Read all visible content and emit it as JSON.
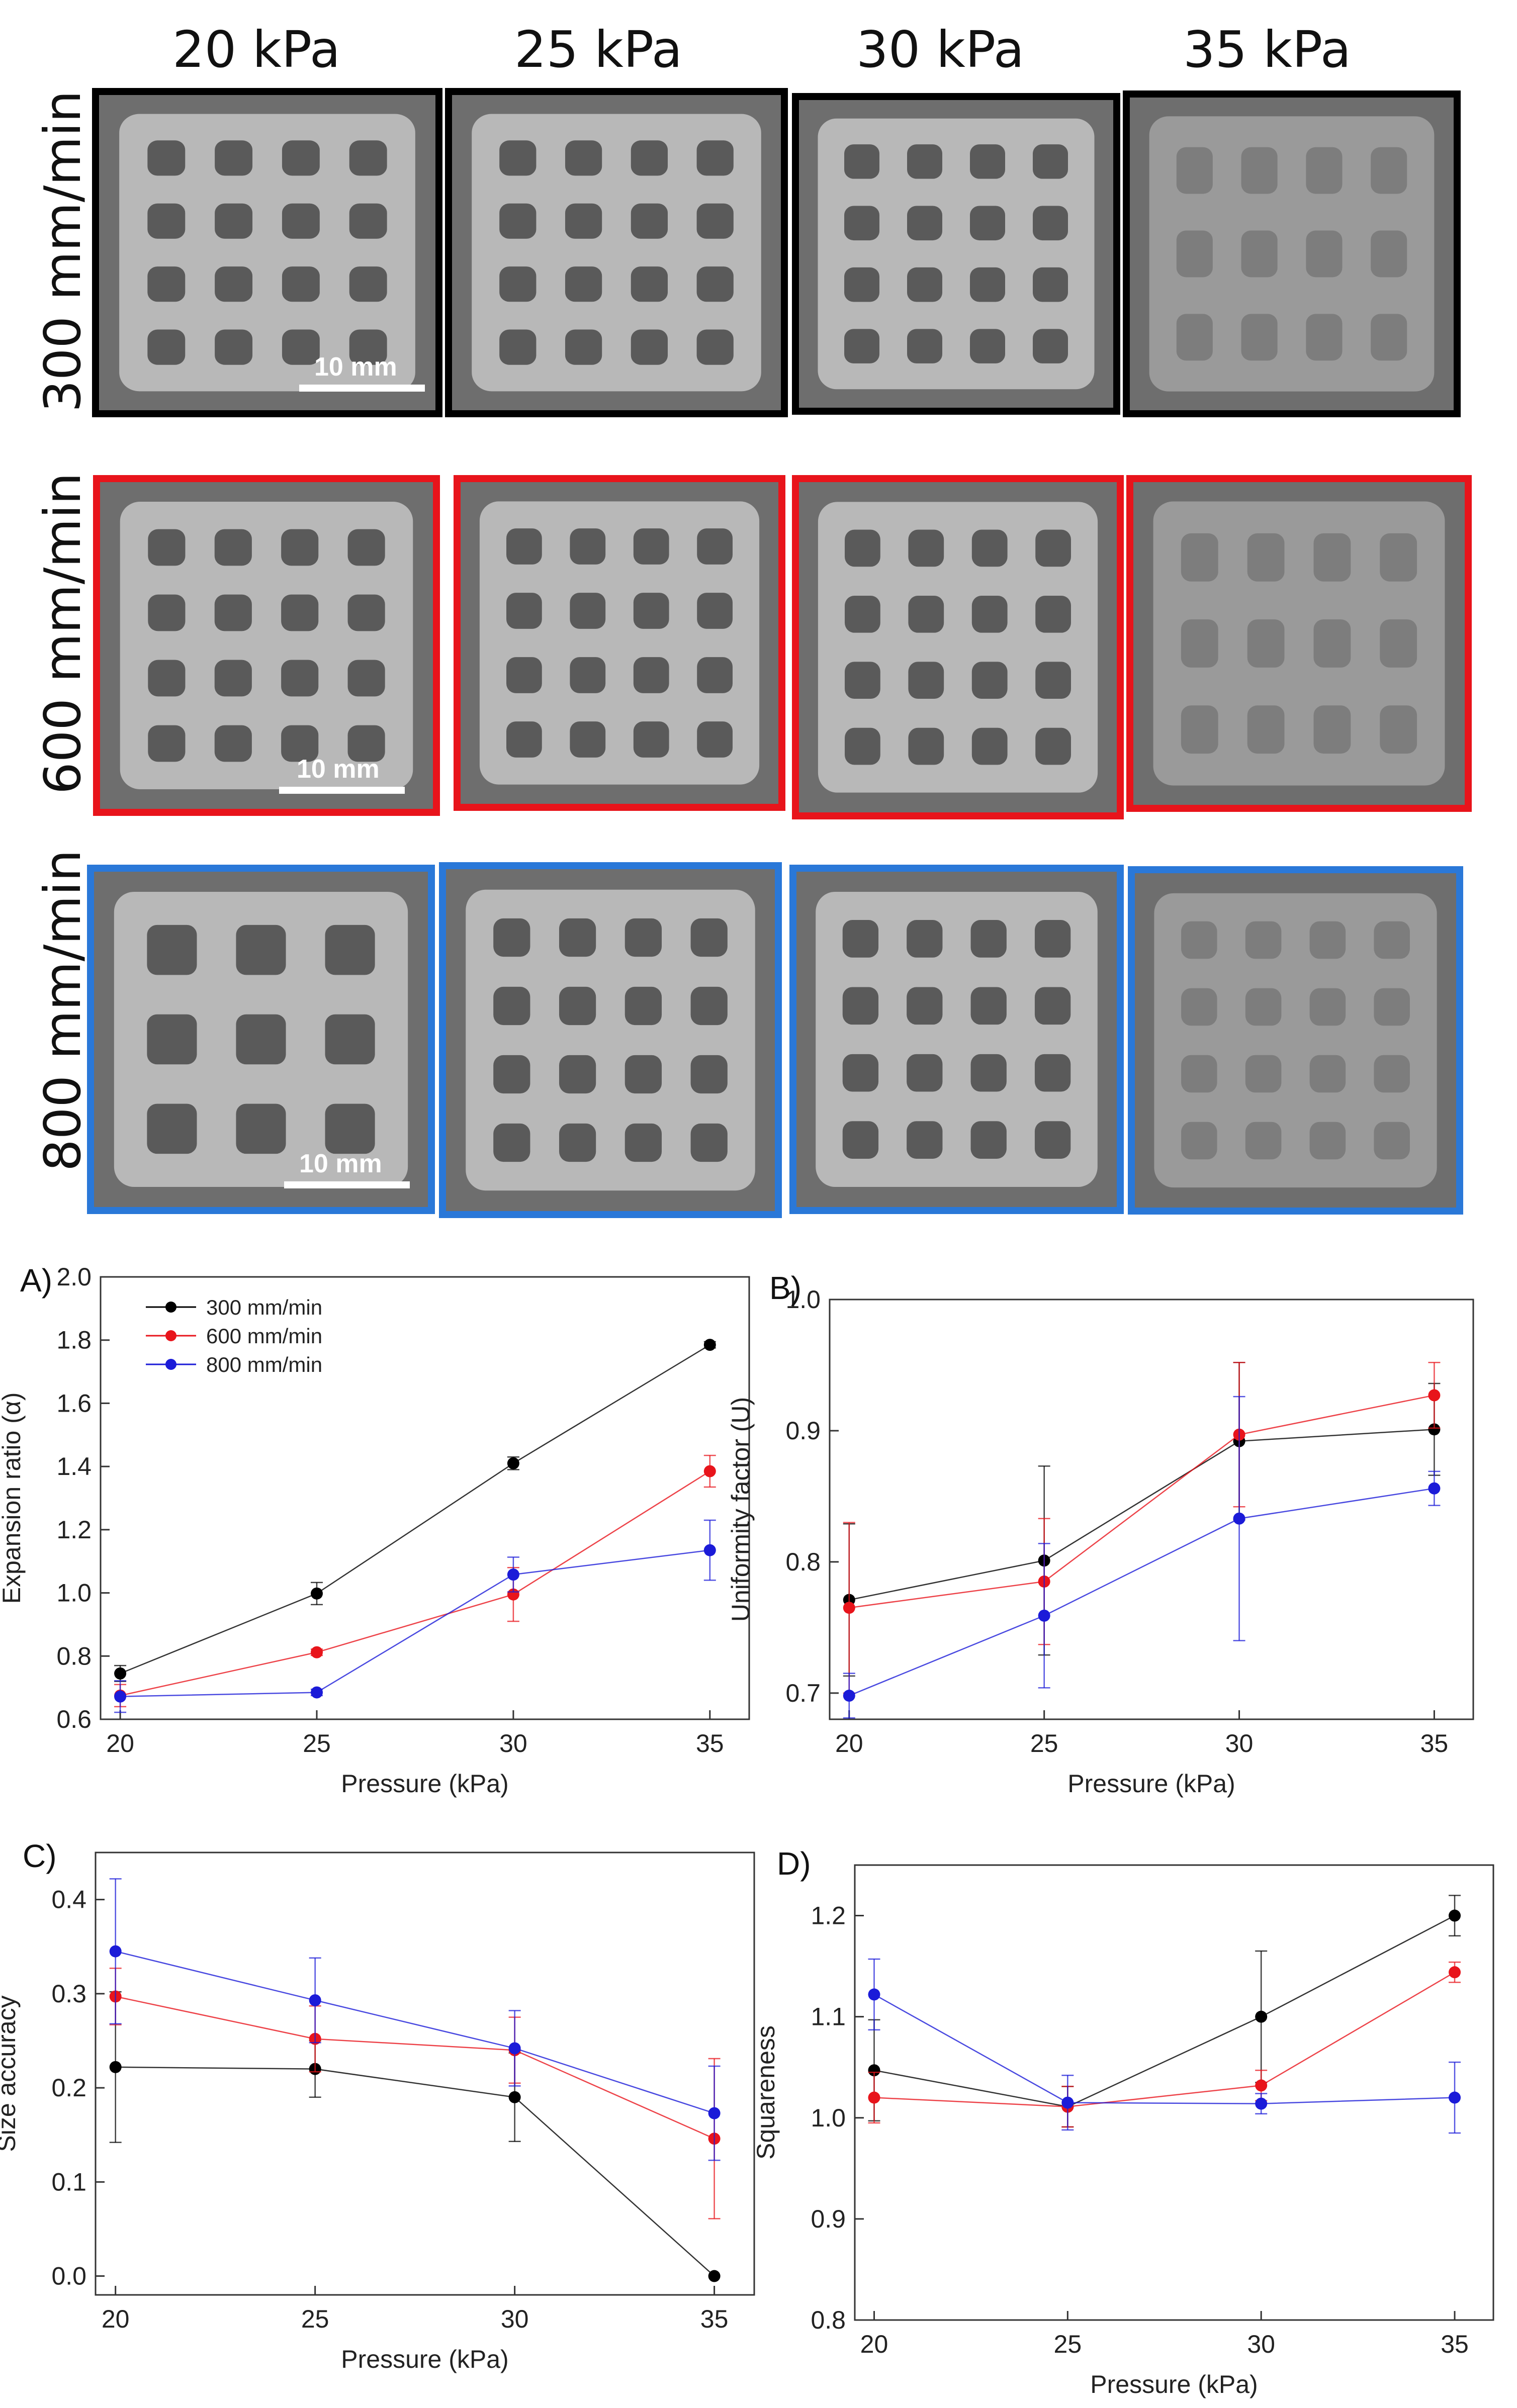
{
  "photo_grid": {
    "columns": [
      "20 kPa",
      "25 kPa",
      "30 kPa",
      "35 kPa"
    ],
    "rows": [
      {
        "label": "300 mm/min",
        "color": "#000000"
      },
      {
        "label": "600 mm/min",
        "color": "#e8141b"
      },
      {
        "label": "800 mm/min",
        "color": "#2a78d8"
      }
    ],
    "scale_bar": "10 mm"
  },
  "chart_data": [
    {
      "type": "line",
      "panel": "A)",
      "title": "",
      "xlabel": "Pressure (kPa)",
      "ylabel": "Expansion ratio (α)",
      "x": [
        20,
        25,
        30,
        35
      ],
      "xlim": [
        19.5,
        36
      ],
      "ylim": [
        0.6,
        2.0
      ],
      "yticks": [
        0.6,
        0.8,
        1.0,
        1.2,
        1.4,
        1.6,
        1.8,
        2.0
      ],
      "ytick_decimals": 1,
      "legend": "top-left",
      "series": [
        {
          "name": "300 mm/min",
          "color": "#000000",
          "values": [
            0.745,
            0.998,
            1.41,
            1.785
          ],
          "errors": [
            0.025,
            0.035,
            0.02,
            0.01
          ]
        },
        {
          "name": "600 mm/min",
          "color": "#e8141b",
          "values": [
            0.675,
            0.812,
            0.995,
            1.385
          ],
          "errors": [
            0.035,
            0.01,
            0.085,
            0.05
          ]
        },
        {
          "name": "800 mm/min",
          "color": "#1b1bd8",
          "values": [
            0.672,
            0.685,
            1.058,
            1.135
          ],
          "errors": [
            0.05,
            0.01,
            0.055,
            0.095
          ]
        }
      ]
    },
    {
      "type": "line",
      "panel": "B)",
      "title": "",
      "xlabel": "Pressure (kPa)",
      "ylabel": "Uniformity factor (U)",
      "x": [
        20,
        25,
        30,
        35
      ],
      "xlim": [
        19.5,
        36
      ],
      "ylim": [
        0.68,
        1.0
      ],
      "yticks": [
        0.7,
        0.8,
        0.9,
        1.0
      ],
      "ytick_decimals": 1,
      "legend": "",
      "series": [
        {
          "name": "300 mm/min",
          "color": "#000000",
          "values": [
            0.771,
            0.801,
            0.892,
            0.901
          ],
          "errors": [
            0.058,
            0.072,
            0.06,
            0.035
          ]
        },
        {
          "name": "600 mm/min",
          "color": "#e8141b",
          "values": [
            0.765,
            0.785,
            0.897,
            0.927
          ],
          "errors": [
            0.065,
            0.048,
            0.055,
            0.025
          ]
        },
        {
          "name": "800 mm/min",
          "color": "#1b1bd8",
          "values": [
            0.698,
            0.759,
            0.833,
            0.856
          ],
          "errors": [
            0.017,
            0.055,
            0.093,
            0.013
          ]
        }
      ]
    },
    {
      "type": "line",
      "panel": "C)",
      "title": "",
      "xlabel": "Pressure (kPa)",
      "ylabel": "Size accuracy",
      "x": [
        20,
        25,
        30,
        35
      ],
      "xlim": [
        19.5,
        36
      ],
      "ylim": [
        -0.02,
        0.45
      ],
      "yticks": [
        0.0,
        0.1,
        0.2,
        0.3,
        0.4
      ],
      "ytick_decimals": 1,
      "legend": "",
      "series": [
        {
          "name": "300 mm/min",
          "color": "#000000",
          "values": [
            0.222,
            0.22,
            0.19,
            0.0
          ],
          "errors": [
            0.08,
            0.03,
            0.047,
            0.0
          ]
        },
        {
          "name": "600 mm/min",
          "color": "#e8141b",
          "values": [
            0.297,
            0.252,
            0.24,
            0.146
          ],
          "errors": [
            0.03,
            0.035,
            0.035,
            0.085
          ]
        },
        {
          "name": "800 mm/min",
          "color": "#1b1bd8",
          "values": [
            0.345,
            0.293,
            0.242,
            0.173
          ],
          "errors": [
            0.077,
            0.045,
            0.04,
            0.05
          ]
        }
      ]
    },
    {
      "type": "line",
      "panel": "D)",
      "title": "",
      "xlabel": "Pressure (kPa)",
      "ylabel": "Squareness",
      "x": [
        20,
        25,
        30,
        35
      ],
      "xlim": [
        19.5,
        36
      ],
      "ylim": [
        0.8,
        1.25
      ],
      "yticks": [
        0.8,
        0.9,
        1.0,
        1.1,
        1.2
      ],
      "ytick_decimals": 1,
      "legend": "",
      "series": [
        {
          "name": "300 mm/min",
          "color": "#000000",
          "values": [
            1.047,
            1.011,
            1.1,
            1.2
          ],
          "errors": [
            0.05,
            0.02,
            0.065,
            0.02
          ]
        },
        {
          "name": "600 mm/min",
          "color": "#e8141b",
          "values": [
            1.02,
            1.011,
            1.032,
            1.144
          ],
          "errors": [
            0.025,
            0.02,
            0.015,
            0.01
          ]
        },
        {
          "name": "800 mm/min",
          "color": "#1b1bd8",
          "values": [
            1.122,
            1.015,
            1.014,
            1.02
          ],
          "errors": [
            0.035,
            0.027,
            0.01,
            0.035
          ]
        }
      ]
    }
  ]
}
